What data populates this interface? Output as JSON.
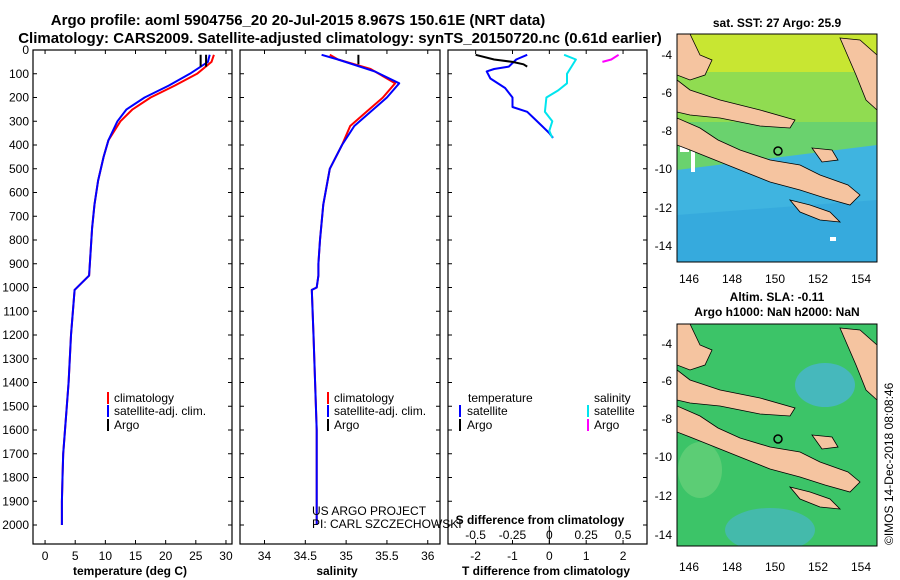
{
  "title_line1": "Argo profile: aoml 5904756_20 20-Jul-2015 8.967S 150.61E (NRT data)",
  "title_line2": "Climatology: CARS2009. Satellite-adjusted climatology: synTS_20150720.nc (0.61d earlier)",
  "credit_line1": "US ARGO PROJECT",
  "credit_line2": "PI: CARL SZCZECHOWSKI",
  "imos_stamp": "©IMOS 14-Dec-2018 08:08:46",
  "colors": {
    "climatology": "#ff0000",
    "satellite": "#0000ff",
    "argo": "#000000",
    "sal_satellite": "#00e5ee",
    "sal_argo": "#ff00ff",
    "land": "#f5c4a0"
  },
  "chart_data": [
    {
      "id": "temperature",
      "type": "line",
      "xlabel": "temperature (deg C)",
      "ylabel": "",
      "xlim": [
        -2,
        31
      ],
      "ylim": [
        2080,
        0
      ],
      "xticks": [
        0,
        5,
        10,
        15,
        20,
        25,
        30
      ],
      "yticks": [
        0,
        100,
        200,
        300,
        400,
        500,
        600,
        700,
        800,
        900,
        1000,
        1100,
        1200,
        1300,
        1400,
        1500,
        1600,
        1700,
        1800,
        1900,
        2000
      ],
      "legend": [
        "climatology",
        "satellite-adj. clim.",
        "Argo"
      ],
      "series": [
        {
          "name": "climatology",
          "x": [
            28,
            27.6,
            25.2,
            21.5,
            17.5,
            14.5,
            12.5,
            10.5,
            9.7,
            8.8,
            8.2,
            7.8,
            7.3,
            4.9,
            4.3,
            3.9,
            3.6,
            3.3,
            3.0,
            2.9,
            2.8,
            2.8
          ],
          "y": [
            20,
            50,
            100,
            150,
            200,
            250,
            300,
            380,
            450,
            550,
            650,
            750,
            950,
            1010,
            1200,
            1400,
            1500,
            1600,
            1700,
            1800,
            1900,
            2000
          ]
        },
        {
          "name": "satellite-adj. clim.",
          "x": [
            27.3,
            27.0,
            24.0,
            20.5,
            16.5,
            13.5,
            12.0,
            10.5,
            9.7,
            8.8,
            8.2,
            7.8,
            7.3,
            4.9,
            4.3,
            3.9,
            3.6,
            3.3,
            3.0,
            2.9,
            2.8,
            2.8
          ],
          "y": [
            20,
            50,
            100,
            150,
            200,
            250,
            300,
            380,
            450,
            550,
            650,
            750,
            950,
            1010,
            1200,
            1400,
            1500,
            1600,
            1700,
            1800,
            1900,
            2000
          ]
        },
        {
          "name": "Argo",
          "x": [
            26.7,
            26.7,
            25.8,
            25.8
          ],
          "y": [
            20,
            70,
            20,
            70
          ]
        }
      ]
    },
    {
      "id": "salinity",
      "type": "line",
      "xlabel": "salinity",
      "ylabel": "",
      "xlim": [
        33.7,
        36.15
      ],
      "ylim": [
        2080,
        0
      ],
      "xticks": [
        34,
        34.5,
        35,
        35.5,
        36
      ],
      "yticks": [],
      "legend": [
        "climatology",
        "satellite-adj. clim.",
        "Argo"
      ],
      "series": [
        {
          "name": "climatology",
          "x": [
            34.8,
            34.9,
            35.3,
            35.6,
            35.45,
            35.25,
            35.05,
            34.95,
            34.8,
            34.72,
            34.68,
            34.66,
            34.66,
            34.64,
            34.58,
            34.6,
            34.62,
            34.64,
            34.64,
            34.64
          ],
          "y": [
            20,
            40,
            80,
            140,
            200,
            260,
            320,
            400,
            500,
            650,
            800,
            900,
            950,
            1000,
            1010,
            1200,
            1400,
            1600,
            1800,
            2000
          ]
        },
        {
          "name": "satellite-adj. clim.",
          "x": [
            34.7,
            34.9,
            35.35,
            35.65,
            35.5,
            35.3,
            35.1,
            34.95,
            34.8,
            34.72,
            34.68,
            34.66,
            34.66,
            34.64,
            34.58,
            34.6,
            34.62,
            34.64,
            34.64,
            34.64
          ],
          "y": [
            20,
            40,
            90,
            140,
            200,
            260,
            320,
            400,
            500,
            650,
            800,
            900,
            950,
            1000,
            1010,
            1200,
            1400,
            1600,
            1800,
            2000
          ]
        },
        {
          "name": "Argo",
          "x": [
            35.15,
            35.15
          ],
          "y": [
            20,
            60
          ]
        }
      ]
    },
    {
      "id": "difference",
      "type": "line",
      "xlabel": "T difference from climatology",
      "xlabel2": "S difference from climatology",
      "xlim": [
        -2.75,
        2.65
      ],
      "ylim": [
        2080,
        0
      ],
      "xticks": [
        -2,
        -1,
        0,
        1,
        2
      ],
      "xticks2": [
        -0.5,
        -0.25,
        0,
        0.25,
        0.5
      ],
      "legend_title_t": "temperature",
      "legend_title_s": "salinity",
      "legend": [
        "satellite",
        "Argo",
        "satellite",
        "Argo"
      ],
      "series": [
        {
          "name": "temperature satellite",
          "x": [
            -0.6,
            -0.9,
            -1.1,
            -1.5,
            -1.7,
            -1.6,
            -1.2,
            -1.0,
            -1.0,
            -0.6,
            -0.4,
            -0.2,
            0.0,
            0.1
          ],
          "y": [
            20,
            40,
            70,
            80,
            90,
            120,
            160,
            200,
            240,
            260,
            290,
            320,
            350,
            370
          ]
        },
        {
          "name": "temperature Argo",
          "x": [
            -2.0,
            -1.5,
            -1.0,
            -0.7,
            -0.6
          ],
          "y": [
            20,
            40,
            50,
            60,
            70
          ]
        },
        {
          "name": "salinity satellite",
          "x": [
            0.1,
            0.18,
            0.15,
            0.12,
            0.12,
            0.06,
            -0.02,
            -0.03,
            0.02,
            0.0,
            0.02
          ],
          "y": [
            20,
            40,
            70,
            100,
            140,
            170,
            200,
            260,
            300,
            340,
            370
          ]
        },
        {
          "name": "salinity Argo",
          "x": [
            0.47,
            0.42,
            0.36
          ],
          "y": [
            20,
            40,
            50
          ]
        }
      ]
    }
  ],
  "sst_map": {
    "title": "sat. SST: 27 Argo: 25.9",
    "xticks": [
      "146",
      "148",
      "150",
      "152",
      "154"
    ],
    "yticks": [
      "-4",
      "-6",
      "-8",
      "-10",
      "-12",
      "-14"
    ]
  },
  "sla_map": {
    "title1": "Altim. SLA: -0.11",
    "title2": "Argo h1000: NaN h2000: NaN",
    "xticks": [
      "146",
      "148",
      "150",
      "152",
      "154"
    ],
    "yticks": [
      "-4",
      "-6",
      "-8",
      "-10",
      "-12",
      "-14"
    ]
  }
}
